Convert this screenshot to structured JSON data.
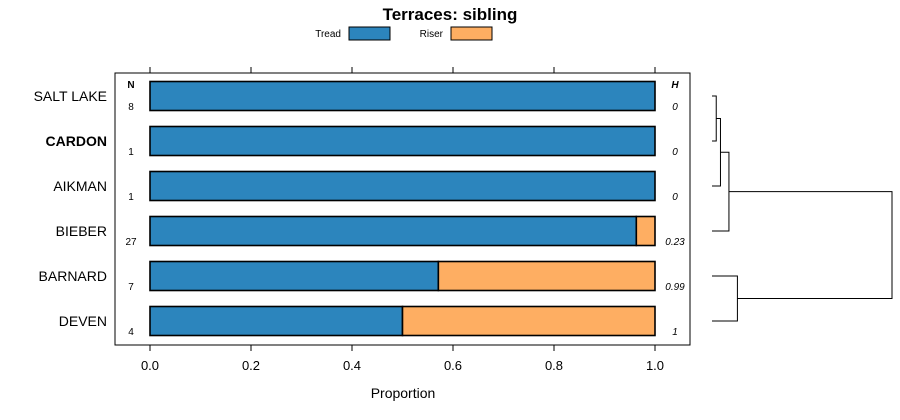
{
  "chart_data": {
    "type": "bar",
    "stacked": true,
    "orientation": "horizontal",
    "title": "Terraces: sibling",
    "xlabel": "Proportion",
    "ylabel": "",
    "xlim": [
      0,
      1
    ],
    "xticks": [
      0.0,
      0.2,
      0.4,
      0.6,
      0.8,
      1.0
    ],
    "xtick_labels": [
      "0.0",
      "0.2",
      "0.4",
      "0.6",
      "0.8",
      "1.0"
    ],
    "legend_position": "top",
    "column_headers": {
      "n": "N",
      "h": "H"
    },
    "colors": {
      "Tread": "#2c85bd",
      "Riser": "#feae62"
    },
    "categories": [
      "SALT LAKE",
      "CARDON",
      "AIKMAN",
      "BIEBER",
      "BARNARD",
      "DEVEN"
    ],
    "highlight_category": "CARDON",
    "n": [
      "8",
      "1",
      "1",
      "27",
      "7",
      "4"
    ],
    "h": [
      "0",
      "0",
      "0",
      "0.23",
      "0.99",
      "1"
    ],
    "series": [
      {
        "name": "Tread",
        "values": [
          1.0,
          1.0,
          1.0,
          0.963,
          0.571,
          0.5
        ]
      },
      {
        "name": "Riser",
        "values": [
          0.0,
          0.0,
          0.0,
          0.037,
          0.429,
          0.5
        ]
      }
    ],
    "dendrogram": {
      "description": "hierarchical clustering of profiles",
      "merges": [
        [
          0,
          1,
          0.02
        ],
        [
          -1,
          2,
          0.04
        ],
        [
          -2,
          3,
          0.08
        ],
        [
          4,
          5,
          0.12
        ],
        [
          -3,
          -4,
          0.85
        ]
      ]
    }
  }
}
